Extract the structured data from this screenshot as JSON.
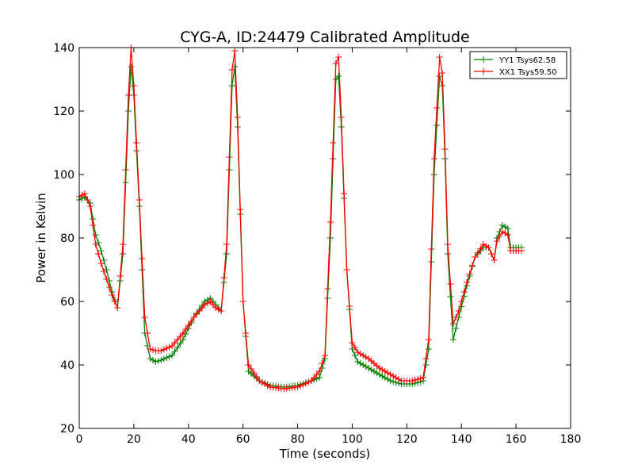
{
  "chart_data": {
    "type": "line",
    "title": "CYG-A, ID:24479 Calibrated Amplitude",
    "xlabel": "Time (seconds)",
    "ylabel": "Power in Kelvin",
    "xlim": [
      0,
      180
    ],
    "ylim": [
      20,
      140
    ],
    "xticks": [
      "0",
      "20",
      "40",
      "60",
      "80",
      "100",
      "120",
      "140",
      "160",
      "180"
    ],
    "yticks": [
      "20",
      "40",
      "60",
      "80",
      "100",
      "120",
      "140"
    ],
    "grid": false,
    "legend_position": "top-right",
    "marker": "+",
    "series": [
      {
        "name": "YY1 Tsys62.58",
        "color": "#008000",
        "points": [
          [
            0,
            92
          ],
          [
            2,
            93
          ],
          [
            4,
            91
          ],
          [
            6,
            81
          ],
          [
            8,
            76
          ],
          [
            10,
            70
          ],
          [
            12,
            63
          ],
          [
            14,
            58
          ],
          [
            16,
            75
          ],
          [
            18,
            120
          ],
          [
            19,
            134
          ],
          [
            20,
            125
          ],
          [
            22,
            90
          ],
          [
            24,
            50
          ],
          [
            26,
            42
          ],
          [
            28,
            41
          ],
          [
            30,
            41.5
          ],
          [
            34,
            43
          ],
          [
            38,
            48
          ],
          [
            42,
            55
          ],
          [
            46,
            60
          ],
          [
            48,
            61
          ],
          [
            50,
            59
          ],
          [
            52,
            57
          ],
          [
            54,
            75
          ],
          [
            56,
            128
          ],
          [
            57,
            134
          ],
          [
            58,
            115
          ],
          [
            60,
            60
          ],
          [
            62,
            38
          ],
          [
            66,
            35
          ],
          [
            70,
            33.5
          ],
          [
            75,
            33
          ],
          [
            80,
            33.5
          ],
          [
            85,
            35
          ],
          [
            88,
            36
          ],
          [
            90,
            42
          ],
          [
            92,
            80
          ],
          [
            94,
            130
          ],
          [
            95,
            131
          ],
          [
            96,
            115
          ],
          [
            98,
            70
          ],
          [
            100,
            45
          ],
          [
            102,
            41
          ],
          [
            106,
            39
          ],
          [
            110,
            37
          ],
          [
            114,
            35
          ],
          [
            118,
            34
          ],
          [
            122,
            34
          ],
          [
            126,
            35
          ],
          [
            128,
            45
          ],
          [
            130,
            100
          ],
          [
            132,
            131
          ],
          [
            133,
            128
          ],
          [
            134,
            105
          ],
          [
            135,
            75
          ],
          [
            137,
            48
          ],
          [
            139,
            55
          ],
          [
            142,
            65
          ],
          [
            145,
            74
          ],
          [
            148,
            77
          ],
          [
            150,
            77
          ],
          [
            152,
            73
          ],
          [
            153,
            80
          ],
          [
            155,
            84
          ],
          [
            157,
            83
          ],
          [
            158,
            77
          ],
          [
            160,
            77
          ],
          [
            162,
            77
          ]
        ]
      },
      {
        "name": "XX1 Tsys59.50",
        "color": "#ff0000",
        "points": [
          [
            0,
            93
          ],
          [
            2,
            94
          ],
          [
            4,
            90
          ],
          [
            6,
            78
          ],
          [
            8,
            72
          ],
          [
            10,
            67
          ],
          [
            12,
            62
          ],
          [
            14,
            58
          ],
          [
            16,
            78
          ],
          [
            18,
            125
          ],
          [
            19,
            140
          ],
          [
            20,
            128
          ],
          [
            22,
            92
          ],
          [
            24,
            55
          ],
          [
            26,
            45
          ],
          [
            28,
            44.5
          ],
          [
            30,
            44.5
          ],
          [
            34,
            46
          ],
          [
            38,
            50
          ],
          [
            42,
            55
          ],
          [
            46,
            59
          ],
          [
            48,
            60
          ],
          [
            50,
            58
          ],
          [
            52,
            57
          ],
          [
            54,
            78
          ],
          [
            56,
            133
          ],
          [
            57,
            139
          ],
          [
            58,
            118
          ],
          [
            60,
            60
          ],
          [
            62,
            40
          ],
          [
            66,
            35
          ],
          [
            70,
            33
          ],
          [
            75,
            32.5
          ],
          [
            80,
            33
          ],
          [
            85,
            35
          ],
          [
            88,
            38
          ],
          [
            90,
            43
          ],
          [
            92,
            85
          ],
          [
            94,
            135
          ],
          [
            95,
            137
          ],
          [
            96,
            118
          ],
          [
            98,
            70
          ],
          [
            100,
            47
          ],
          [
            102,
            44
          ],
          [
            106,
            42
          ],
          [
            110,
            39
          ],
          [
            114,
            37
          ],
          [
            118,
            35
          ],
          [
            122,
            35
          ],
          [
            126,
            36
          ],
          [
            128,
            48
          ],
          [
            130,
            105
          ],
          [
            132,
            137
          ],
          [
            133,
            132
          ],
          [
            134,
            108
          ],
          [
            135,
            78
          ],
          [
            137,
            53
          ],
          [
            139,
            57
          ],
          [
            142,
            66
          ],
          [
            145,
            74
          ],
          [
            148,
            78
          ],
          [
            150,
            77
          ],
          [
            152,
            73
          ],
          [
            153,
            79
          ],
          [
            155,
            82
          ],
          [
            157,
            81
          ],
          [
            158,
            76
          ],
          [
            160,
            76
          ],
          [
            162,
            76
          ]
        ]
      }
    ]
  }
}
